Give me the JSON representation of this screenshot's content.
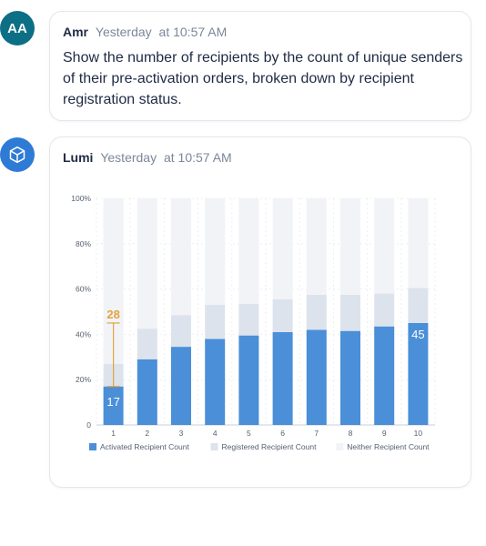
{
  "user_message": {
    "avatar": "AA",
    "name": "Amr",
    "day": "Yesterday",
    "time": "at 10:57 AM",
    "text": "Show the number of recipients by the count of unique senders of their pre-activation orders, broken down by recipient registration status."
  },
  "bot_message": {
    "avatar_icon": "cube-icon",
    "name": "Lumi",
    "day": "Yesterday",
    "time": "at 10:57 AM"
  },
  "colors": {
    "activated": "#4a8fd8",
    "registered": "#dde3ec",
    "neither": "#f1f3f7",
    "highlight": "#e5a33d"
  },
  "chart_data": {
    "type": "bar",
    "stacked": true,
    "normalized": true,
    "categories": [
      "1",
      "2",
      "3",
      "4",
      "5",
      "6",
      "7",
      "8",
      "9",
      "10"
    ],
    "series": [
      {
        "name": "Activated Recipient Count",
        "values": [
          17,
          29,
          34.5,
          38,
          39.5,
          41,
          42,
          41.5,
          43.5,
          45
        ]
      },
      {
        "name": "Registered Recipient Count",
        "values": [
          10,
          13.5,
          14,
          15,
          14,
          14.5,
          15.5,
          16,
          14.5,
          15.5
        ]
      },
      {
        "name": "Neither Recipient Count",
        "values": [
          73,
          57.5,
          51.5,
          47,
          46.5,
          44.5,
          42.5,
          42.5,
          42,
          39.5
        ]
      }
    ],
    "y_ticks": [
      "0",
      "20%",
      "40%",
      "60%",
      "80%",
      "100%"
    ],
    "ylim": [
      0,
      100
    ],
    "data_labels": [
      {
        "category": "1",
        "value": "17"
      },
      {
        "category": "10",
        "value": "45"
      }
    ],
    "annotation": {
      "category": "1",
      "value": "28"
    },
    "legend_position": "bottom-left"
  }
}
